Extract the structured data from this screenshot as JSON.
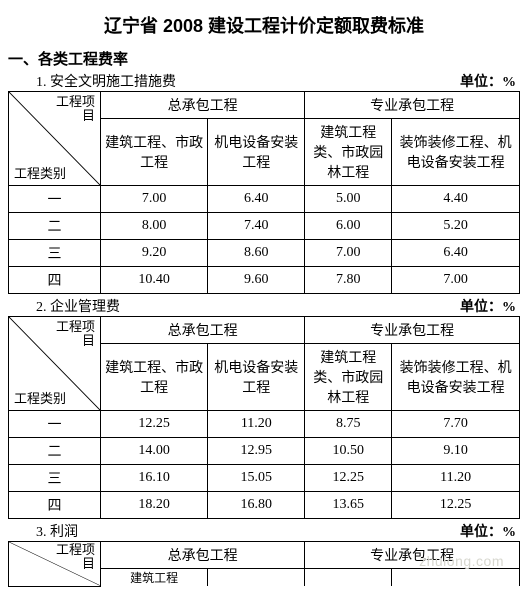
{
  "title": "辽宁省 2008 建设工程计价定额取费标准",
  "section1": "一、各类工程费率",
  "unit_label": "单位：%",
  "diag": {
    "top": "工程项\n目",
    "bottom": "工程类别"
  },
  "group_headers": {
    "g1": "总承包工程",
    "g2": "专业承包工程"
  },
  "col_headers": {
    "c1": "建筑工程、市政工程",
    "c2": "机电设备安装工程",
    "c3": "建筑工程类、市政园林工程",
    "c4": "装饰装修工程、机电设备安装工程"
  },
  "row_labels": {
    "r1": "一",
    "r2": "二",
    "r3": "三",
    "r4": "四"
  },
  "t1": {
    "title": "1. 安全文明施工措施费",
    "r1": [
      "7.00",
      "6.40",
      "5.00",
      "4.40"
    ],
    "r2": [
      "8.00",
      "7.40",
      "6.00",
      "5.20"
    ],
    "r3": [
      "9.20",
      "8.60",
      "7.00",
      "6.40"
    ],
    "r4": [
      "10.40",
      "9.60",
      "7.80",
      "7.00"
    ]
  },
  "t2": {
    "title": "2. 企业管理费",
    "r1": [
      "12.25",
      "11.20",
      "8.75",
      "7.70"
    ],
    "r2": [
      "14.00",
      "12.95",
      "10.50",
      "9.10"
    ],
    "r3": [
      "16.10",
      "15.05",
      "12.25",
      "11.20"
    ],
    "r4": [
      "18.20",
      "16.80",
      "13.65",
      "12.25"
    ]
  },
  "t3": {
    "title": "3. 利润",
    "partial_col": "建筑工程"
  },
  "watermark": "zhulong.com"
}
